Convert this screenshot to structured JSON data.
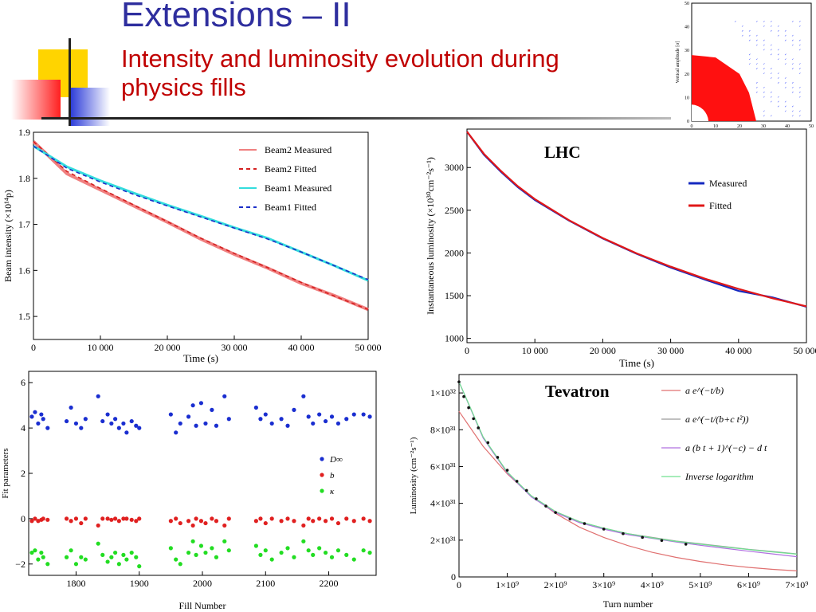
{
  "slide": {
    "title": "Extensions – II",
    "subtitle": "Intensity and luminosity evolution during physics fills"
  },
  "colors": {
    "title_blue": "#2e2e9e",
    "subtitle_red": "#c00000",
    "beam2_measured": "#f08080",
    "beam2_fitted": "#d42020",
    "beam1_measured": "#33dddd",
    "beam1_fitted": "#1b2ec8",
    "lhc_measured": "#1428c0",
    "lhc_fitted": "#e01818"
  },
  "chart_data": [
    {
      "id": "beam-intensity",
      "type": "line",
      "xlabel": "Time (s)",
      "ylabel": "Beam intensity (×10¹⁴p)",
      "xlim": [
        0,
        50000
      ],
      "ylim": [
        1.45,
        1.9
      ],
      "x_ticks": [
        "0",
        "10 000",
        "20 000",
        "30 000",
        "40 000",
        "50 000"
      ],
      "y_ticks": [
        "1.5",
        "1.6",
        "1.7",
        "1.8",
        "1.9"
      ],
      "legend_position": "top-right",
      "x": [
        0,
        5000,
        10000,
        15000,
        20000,
        25000,
        30000,
        35000,
        40000,
        45000,
        50000
      ],
      "series": [
        {
          "name": "Beam2 Measured",
          "style": "solid",
          "values": [
            1.88,
            1.81,
            1.775,
            1.74,
            1.705,
            1.668,
            1.635,
            1.605,
            1.572,
            1.545,
            1.515
          ]
        },
        {
          "name": "Beam2 Fitted",
          "style": "dashed",
          "values": [
            1.88,
            1.815,
            1.778,
            1.742,
            1.706,
            1.67,
            1.637,
            1.606,
            1.574,
            1.544,
            1.515
          ]
        },
        {
          "name": "Beam1 Measured",
          "style": "solid",
          "values": [
            1.87,
            1.825,
            1.795,
            1.768,
            1.742,
            1.718,
            1.693,
            1.67,
            1.64,
            1.61,
            1.578
          ]
        },
        {
          "name": "Beam1 Fitted",
          "style": "dashed",
          "values": [
            1.87,
            1.822,
            1.792,
            1.765,
            1.74,
            1.716,
            1.692,
            1.668,
            1.64,
            1.61,
            1.58
          ]
        }
      ]
    },
    {
      "id": "lhc-luminosity",
      "type": "line",
      "annotation": "LHC",
      "xlabel": "Time (s)",
      "ylabel": "Instantaneous luminosity (×10³⁰cm⁻²s⁻¹)",
      "xlim": [
        0,
        50000
      ],
      "ylim": [
        950,
        3450
      ],
      "x_ticks": [
        "0",
        "10 000",
        "20 000",
        "30 000",
        "40 000",
        "50 000"
      ],
      "y_ticks": [
        "1000",
        "1500",
        "2000",
        "2500",
        "3000"
      ],
      "legend_position": "right",
      "x": [
        0,
        2500,
        5000,
        7500,
        10000,
        15000,
        20000,
        25000,
        30000,
        35000,
        40000,
        45000,
        50000
      ],
      "series": [
        {
          "name": "Measured",
          "values": [
            3420,
            3150,
            2950,
            2770,
            2620,
            2380,
            2170,
            1990,
            1830,
            1690,
            1555,
            1480,
            1370
          ]
        },
        {
          "name": "Fitted",
          "values": [
            3420,
            3160,
            2960,
            2780,
            2630,
            2385,
            2175,
            1995,
            1840,
            1700,
            1580,
            1470,
            1375
          ]
        }
      ]
    },
    {
      "id": "fit-parameters",
      "type": "scatter",
      "xlabel": "Fill Number",
      "ylabel": "Fit parameters",
      "xlim": [
        1725,
        2275
      ],
      "ylim": [
        -2.5,
        6.5
      ],
      "x_ticks": [
        "1800",
        "1900",
        "2000",
        "2100",
        "2200"
      ],
      "y_ticks": [
        "−2",
        "0",
        "2",
        "4",
        "6"
      ],
      "legend_position": "right",
      "fills": [
        1730,
        1735,
        1740,
        1745,
        1748,
        1755,
        1785,
        1792,
        1800,
        1808,
        1815,
        1835,
        1842,
        1850,
        1856,
        1862,
        1868,
        1875,
        1880,
        1888,
        1895,
        1900,
        1950,
        1958,
        1965,
        1978,
        1985,
        1990,
        1998,
        2005,
        2015,
        2022,
        2035,
        2042,
        2085,
        2092,
        2100,
        2110,
        2125,
        2135,
        2145,
        2160,
        2168,
        2175,
        2185,
        2195,
        2205,
        2215,
        2228,
        2240,
        2255,
        2265
      ],
      "series": [
        {
          "name": "D∞",
          "values": [
            4.5,
            4.7,
            4.2,
            4.6,
            4.4,
            4.0,
            4.3,
            4.9,
            4.2,
            4.0,
            4.4,
            5.4,
            4.3,
            4.6,
            4.2,
            4.4,
            4.0,
            4.2,
            3.8,
            4.3,
            4.1,
            4.0,
            4.6,
            3.8,
            4.2,
            4.5,
            5.0,
            4.1,
            5.1,
            4.2,
            4.8,
            4.1,
            5.4,
            4.4,
            4.9,
            4.4,
            4.6,
            4.2,
            4.4,
            4.1,
            4.8,
            5.4,
            4.5,
            4.2,
            4.6,
            4.3,
            4.5,
            4.2,
            4.4,
            4.6,
            4.6,
            4.5
          ]
        },
        {
          "name": "b",
          "values": [
            -0.1,
            0,
            -0.1,
            -0.05,
            0,
            -0.05,
            0,
            -0.1,
            0,
            -0.2,
            0,
            -0.3,
            0,
            0,
            -0.05,
            0,
            -0.1,
            0,
            0,
            -0.05,
            -0.1,
            0,
            -0.1,
            0,
            -0.2,
            -0.1,
            -0.3,
            0,
            -0.1,
            -0.2,
            0,
            -0.1,
            -0.3,
            0,
            -0.1,
            0,
            -0.2,
            0,
            -0.1,
            0,
            -0.1,
            -0.3,
            0,
            -0.1,
            0,
            -0.1,
            0,
            -0.2,
            0,
            -0.1,
            0,
            -0.1
          ]
        },
        {
          "name": "κ",
          "values": [
            -1.5,
            -1.4,
            -1.8,
            -1.5,
            -1.7,
            -2.0,
            -1.7,
            -1.4,
            -2.0,
            -1.7,
            -1.8,
            -1.1,
            -1.6,
            -1.9,
            -1.7,
            -1.5,
            -2.0,
            -1.6,
            -1.8,
            -1.5,
            -1.7,
            -2.1,
            -1.3,
            -1.8,
            -2.0,
            -1.5,
            -1.0,
            -1.6,
            -1.2,
            -1.5,
            -1.3,
            -1.7,
            -1.0,
            -1.4,
            -1.2,
            -1.6,
            -1.4,
            -1.8,
            -1.5,
            -1.3,
            -1.7,
            -1.0,
            -1.4,
            -1.6,
            -1.3,
            -1.5,
            -1.7,
            -1.4,
            -1.6,
            -1.8,
            -1.4,
            -1.5
          ]
        }
      ]
    },
    {
      "id": "tevatron-luminosity",
      "type": "line",
      "annotation": "Tevatron",
      "xlabel": "Turn number",
      "ylabel": "Luminosity  (cm⁻²s⁻¹)",
      "xlim": [
        0,
        7000000000
      ],
      "ylim": [
        0,
        110000000000000000000000000000000
      ],
      "x_ticks": [
        "0",
        "1×10⁹",
        "2×10⁹",
        "3×10⁹",
        "4×10⁹",
        "5×10⁹",
        "6×10⁹",
        "7×10⁹"
      ],
      "y_ticks": [
        "0",
        "2×10³¹",
        "4×10³¹",
        "6×10³¹",
        "8×10³¹",
        "1×10³²"
      ],
      "legend_position": "top-right",
      "x": [
        0,
        500000000,
        1000000000,
        1500000000,
        2000000000,
        2500000000,
        3000000000,
        3500000000,
        4000000000,
        4500000000,
        5000000000,
        5500000000,
        6000000000,
        6500000000,
        7000000000
      ],
      "series": [
        {
          "name": "a e^(−t/b)",
          "values": [
            90000000000000000000000000000000,
            71000000000000000000000000000000,
            56000000000000000000000000000000,
            44000000000000000000000000000000,
            34500000000000000000000000000000,
            27000000000000000000000000000000,
            21500000000000000000000000000000,
            17000000000000000000000000000000,
            13400000000000000000000000000000,
            10600000000000000000000000000000,
            8400000000000000000000000000000,
            6600000000000000000000000000000,
            5200000000000000000000000000000,
            4100000000000000000000000000000,
            3300000000000000000000000000000
          ]
        },
        {
          "name": "a e^(−t/(b+c t²))",
          "values": [
            106000000000000000000000000000000,
            76000000000000000000000000000000,
            57000000000000000000000000000000,
            44000000000000000000000000000000,
            35500000000000000000000000000000,
            30000000000000000000000000000000,
            26500000000000000000000000000000,
            23500000000000000000000000000000,
            21500000000000000000000000000000,
            19500000000000000000000000000000,
            18000000000000000000000000000000,
            16500000000000000000000000000000,
            15000000000000000000000000000000,
            13800000000000000000000000000000,
            12500000000000000000000000000000
          ]
        },
        {
          "name": "a (b t + 1)^(−c) − d t",
          "values": [
            106000000000000000000000000000000,
            75500000000000000000000000000000,
            56500000000000000000000000000000,
            43500000000000000000000000000000,
            35000000000000000000000000000000,
            29500000000000000000000000000000,
            26000000000000000000000000000000,
            23000000000000000000000000000000,
            21000000000000000000000000000000,
            19000000000000000000000000000000,
            17200000000000000000000000000000,
            15600000000000000000000000000000,
            14000000000000000000000000000000,
            12500000000000000000000000000000,
            11000000000000000000000000000000
          ]
        },
        {
          "name": "Inverse logarithm",
          "values": [
            106000000000000000000000000000000,
            76000000000000000000000000000000,
            57000000000000000000000000000000,
            44000000000000000000000000000000,
            35500000000000000000000000000000,
            30000000000000000000000000000000,
            26500000000000000000000000000000,
            23500000000000000000000000000000,
            21200000000000000000000000000000,
            19300000000000000000000000000000,
            17800000000000000000000000000000,
            16300000000000000000000000000000,
            14900000000000000000000000000000,
            13600000000000000000000000000000,
            12400000000000000000000000000000
          ]
        }
      ],
      "measured_points": {
        "x": [
          0,
          100000000,
          200000000,
          300000000,
          400000000,
          600000000,
          800000000,
          1000000000,
          1200000000,
          1400000000,
          1600000000,
          1800000000,
          2000000000,
          2300000000,
          2600000000,
          3000000000,
          3400000000,
          3800000000,
          4200000000,
          4700000000
        ],
        "values": [
          106000000000000000000000000000000,
          98000000000000000000000000000000,
          92000000000000000000000000000000,
          86000000000000000000000000000000,
          81000000000000000000000000000000,
          73000000000000000000000000000000,
          65000000000000000000000000000000,
          58000000000000000000000000000000,
          52000000000000000000000000000000,
          47000000000000000000000000000000,
          42500000000000000000000000000000,
          38500000000000000000000000000000,
          35000000000000000000000000000000,
          31500000000000000000000000000000,
          29000000000000000000000000000000,
          26000000000000000000000000000000,
          23500000000000000000000000000000,
          21500000000000000000000000000000,
          19800000000000000000000000000000,
          17800000000000000000000000000000
        ]
      }
    },
    {
      "id": "dynamic-aperture-thumbnail",
      "type": "scatter",
      "ylabel": "Vertical amplitude [σ]",
      "xlim": [
        0,
        50
      ],
      "ylim": [
        0,
        50
      ],
      "x_ticks": [
        "0",
        "10",
        "20",
        "30",
        "40",
        "50"
      ],
      "y_ticks": [
        "0",
        "10",
        "20",
        "30",
        "40",
        "50"
      ]
    }
  ]
}
